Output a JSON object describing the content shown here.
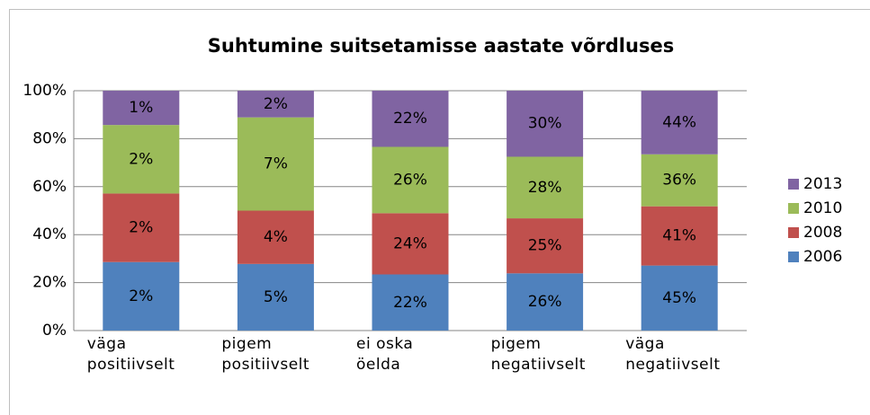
{
  "chart_data": {
    "type": "bar",
    "stacking": "percent",
    "title": "Suhtumine suitsetamisse aastate võrdluses",
    "categories": [
      "väga\npositiivselt",
      "pigem\npositiivselt",
      "ei oska\nöelda",
      "pigem\nnegatiivselt",
      "väga\nnegatiivselt"
    ],
    "series": [
      {
        "name": "2006",
        "color": "#4f81bd",
        "values": [
          2,
          5,
          22,
          26,
          45
        ],
        "value_labels": [
          "2%",
          "5%",
          "22%",
          "26%",
          "45%"
        ]
      },
      {
        "name": "2008",
        "color": "#c0504d",
        "values": [
          2,
          4,
          24,
          25,
          41
        ],
        "value_labels": [
          "2%",
          "4%",
          "24%",
          "25%",
          "41%"
        ]
      },
      {
        "name": "2010",
        "color": "#9bbb59",
        "values": [
          2,
          7,
          26,
          28,
          36
        ],
        "value_labels": [
          "2%",
          "7%",
          "26%",
          "28%",
          "36%"
        ]
      },
      {
        "name": "2013",
        "color": "#8064a2",
        "values": [
          1,
          2,
          22,
          30,
          44
        ],
        "value_labels": [
          "1%",
          "2%",
          "22%",
          "30%",
          "44%"
        ]
      }
    ],
    "ylim": [
      0,
      100
    ],
    "yticks": [
      {
        "value": 0,
        "label": "0%"
      },
      {
        "value": 20,
        "label": "20%"
      },
      {
        "value": 40,
        "label": "40%"
      },
      {
        "value": 60,
        "label": "60%"
      },
      {
        "value": 80,
        "label": "80%"
      },
      {
        "value": 100,
        "label": "100%"
      }
    ],
    "grid": true,
    "legend": "right"
  }
}
